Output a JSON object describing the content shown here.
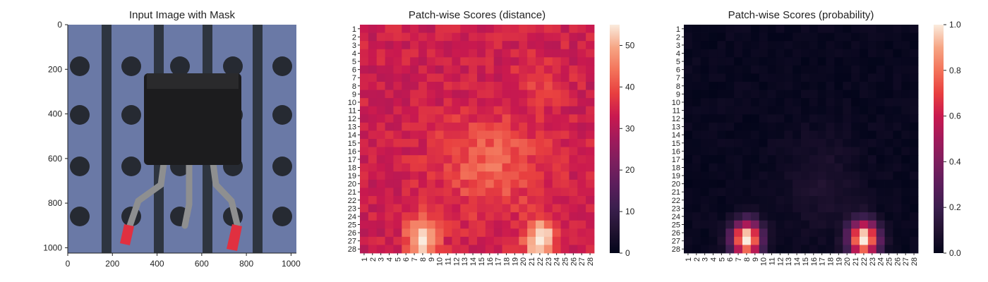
{
  "chart_data": [
    {
      "type": "image",
      "title": "Input Image with Mask",
      "image_description": "Transistor component with three metal legs on a dark blue board with drilled holes; red masked regions on left and right leg tips",
      "xlim": [
        0,
        1024
      ],
      "ylim": [
        1024,
        0
      ],
      "xticks": [
        "0",
        "200",
        "400",
        "600",
        "800",
        "1000"
      ],
      "yticks": [
        "0",
        "200",
        "400",
        "600",
        "800",
        "1000"
      ],
      "colors": {
        "board": "#6a79a6",
        "stripe": "#2e3540",
        "hole": "#262a32",
        "body": "#1c1c1e",
        "leg": "#8e8f90",
        "mask": "#e03040"
      }
    },
    {
      "type": "heatmap",
      "title": "Patch-wise Scores (distance)",
      "rows": 28,
      "cols": 28,
      "xticks": [
        "1",
        "2",
        "3",
        "4",
        "5",
        "6",
        "7",
        "8",
        "9",
        "10",
        "11",
        "12",
        "13",
        "14",
        "15",
        "16",
        "17",
        "18",
        "19",
        "20",
        "21",
        "22",
        "23",
        "24",
        "25",
        "26",
        "27",
        "28"
      ],
      "yticks": [
        "1",
        "2",
        "3",
        "4",
        "5",
        "6",
        "7",
        "8",
        "9",
        "10",
        "11",
        "12",
        "13",
        "14",
        "15",
        "16",
        "17",
        "18",
        "19",
        "20",
        "21",
        "22",
        "23",
        "24",
        "25",
        "26",
        "27",
        "28"
      ],
      "colorbar": {
        "min": 0,
        "max": 55,
        "ticks": [
          "0",
          "10",
          "20",
          "30",
          "40",
          "50"
        ],
        "tick_values": [
          0,
          10,
          20,
          30,
          40,
          50
        ]
      },
      "colormap": "rocket",
      "description": "Baseline ~30-36 across grid; elevated ~42-46 band in center (rows 13-22, cols 12-20); hot spots ~55 at rows 24-28 around cols 7-9 and cols 21-23"
    },
    {
      "type": "heatmap",
      "title": "Patch-wise Scores (probability)",
      "rows": 28,
      "cols": 28,
      "xticks": [
        "1",
        "2",
        "3",
        "4",
        "5",
        "6",
        "7",
        "8",
        "9",
        "10",
        "11",
        "12",
        "13",
        "14",
        "15",
        "16",
        "17",
        "18",
        "19",
        "20",
        "21",
        "22",
        "23",
        "24",
        "25",
        "26",
        "27",
        "28"
      ],
      "yticks": [
        "1",
        "2",
        "3",
        "4",
        "5",
        "6",
        "7",
        "8",
        "9",
        "10",
        "11",
        "12",
        "13",
        "14",
        "15",
        "16",
        "17",
        "18",
        "19",
        "20",
        "21",
        "22",
        "23",
        "24",
        "25",
        "26",
        "27",
        "28"
      ],
      "colorbar": {
        "min": 0,
        "max": 1.0,
        "ticks": [
          "0.0",
          "0.2",
          "0.4",
          "0.6",
          "0.8",
          "1.0"
        ],
        "tick_values": [
          0,
          0.2,
          0.4,
          0.6,
          0.8,
          1.0
        ]
      },
      "colormap": "rocket",
      "description": "Near 0 almost everywhere; hot spots ~1.0 at rows 24-28 around cols 7-9 and cols 21-23"
    }
  ]
}
